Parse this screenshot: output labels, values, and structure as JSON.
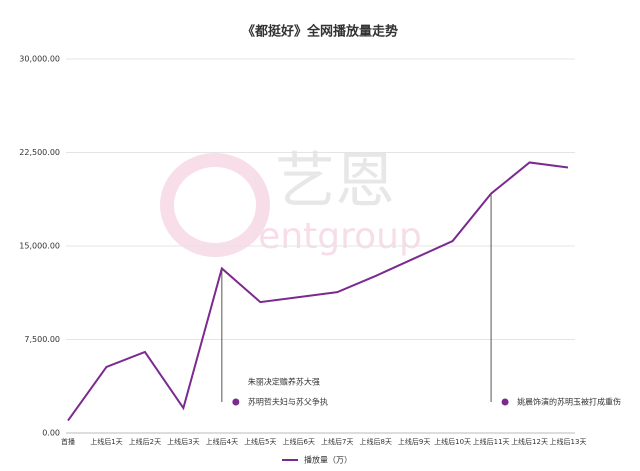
{
  "chart_data": {
    "type": "line",
    "title": "《都挺好》全网播放量走势",
    "categories": [
      "首播",
      "上线后1天",
      "上线后2天",
      "上线后3天",
      "上线后4天",
      "上线后5天",
      "上线后6天",
      "上线后7天",
      "上线后8天",
      "上线后9天",
      "上线后10天",
      "上线后11天",
      "上线后12天",
      "上线后13天"
    ],
    "series": [
      {
        "name": "播放量（万）",
        "color": "#7b2a8f",
        "values": [
          1000,
          5300,
          6500,
          2000,
          13200,
          10500,
          10900,
          11300,
          12600,
          14000,
          15400,
          19200,
          21700,
          21300
        ]
      }
    ],
    "ylim": [
      0,
      30000
    ],
    "yticks": [
      {
        "value": 0,
        "label": "0.00"
      },
      {
        "value": 7500,
        "label": "7,500.00"
      },
      {
        "value": 15000,
        "label": "15,000.00"
      },
      {
        "value": 22500,
        "label": "22,500.00"
      },
      {
        "value": 30000,
        "label": "30,000.00"
      }
    ],
    "grid": true,
    "legend": "bottom",
    "annotations": [
      {
        "x": "上线后4天",
        "lines": [
          "朱丽决定赡养苏大强",
          "苏明哲夫妇与苏父争执"
        ]
      },
      {
        "x": "上线后11天",
        "lines": [
          "姚晨饰演的苏明玉被打成重伤"
        ]
      }
    ],
    "watermark": [
      "艺恩",
      "entgroup"
    ]
  }
}
